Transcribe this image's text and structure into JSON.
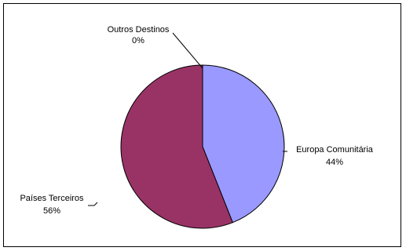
{
  "chart_data": {
    "type": "pie",
    "title": "",
    "slices": [
      {
        "label": "Europa Comunitária",
        "value": 44,
        "value_label": "44%",
        "color": "#9999ff"
      },
      {
        "label": "Países Terceiros",
        "value": 56,
        "value_label": "56%",
        "color": "#993366"
      },
      {
        "label": "Outros Destinos",
        "value": 0,
        "value_label": "0%",
        "color": "#ffffcc"
      }
    ]
  }
}
